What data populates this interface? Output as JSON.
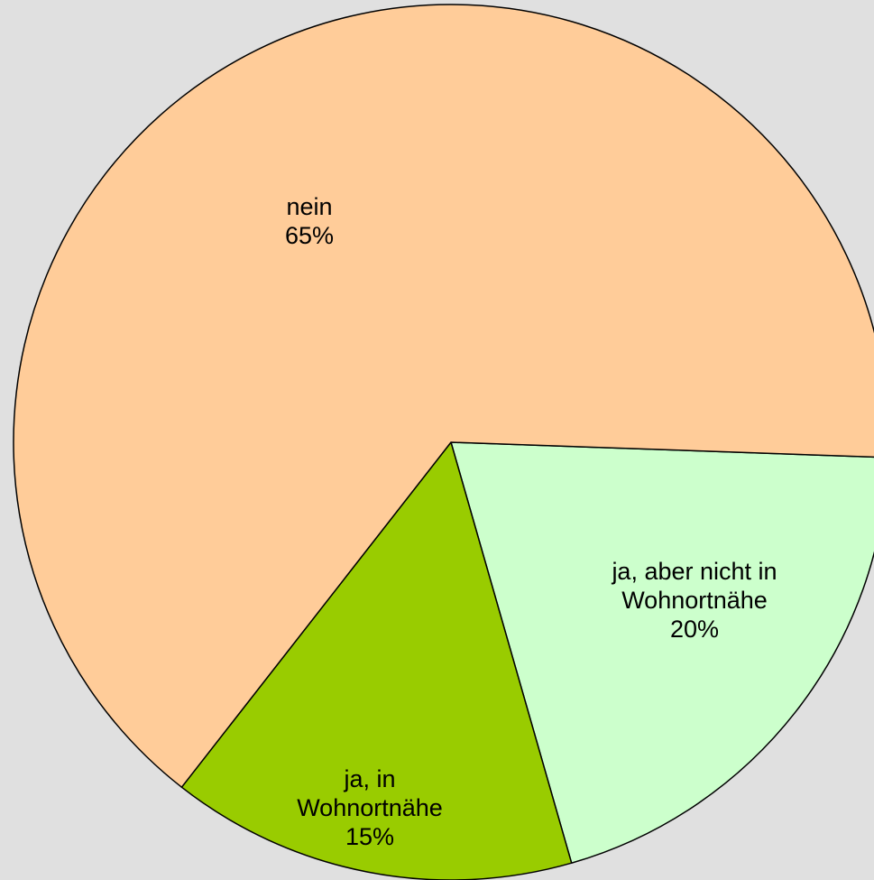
{
  "chart_data": {
    "type": "pie",
    "categories": [
      "ja, aber nicht in Wohnortnähe",
      "ja, in Wohnortnähe",
      "nein"
    ],
    "values": [
      20,
      15,
      65
    ],
    "value_labels": [
      "20%",
      "15%",
      "65%"
    ],
    "colors": [
      "#ccffcc",
      "#99cc00",
      "#ffcc99"
    ]
  }
}
